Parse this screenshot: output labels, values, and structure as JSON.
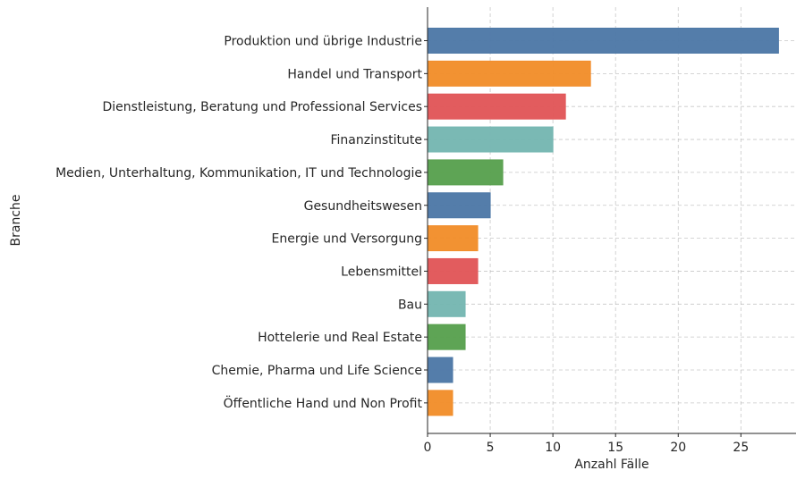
{
  "chart_data": {
    "type": "bar",
    "orientation": "horizontal",
    "title": "",
    "xlabel": "Anzahl Fälle",
    "ylabel": "Branche",
    "xlim": [
      0,
      29.4
    ],
    "xticks": [
      0,
      5,
      10,
      15,
      20,
      25
    ],
    "grid": true,
    "categories": [
      "Produktion und übrige Industrie",
      "Handel und Transport",
      "Dienstleistung, Beratung und Professional Services",
      "Finanzinstitute",
      "Medien, Unterhaltung, Kommunikation, IT und Technologie",
      "Gesundheitswesen",
      "Energie und Versorgung",
      "Lebensmittel",
      "Bau",
      "Hottelerie und Real Estate",
      "Chemie, Pharma und Life Science",
      "Öffentliche Hand und Non Profit"
    ],
    "values": [
      28,
      13,
      11,
      10,
      6,
      5,
      4,
      4,
      3,
      3,
      2,
      2
    ],
    "colors": [
      "#4e79a7",
      "#f28e2b",
      "#e15759",
      "#76b7b2",
      "#59a14f"
    ]
  }
}
